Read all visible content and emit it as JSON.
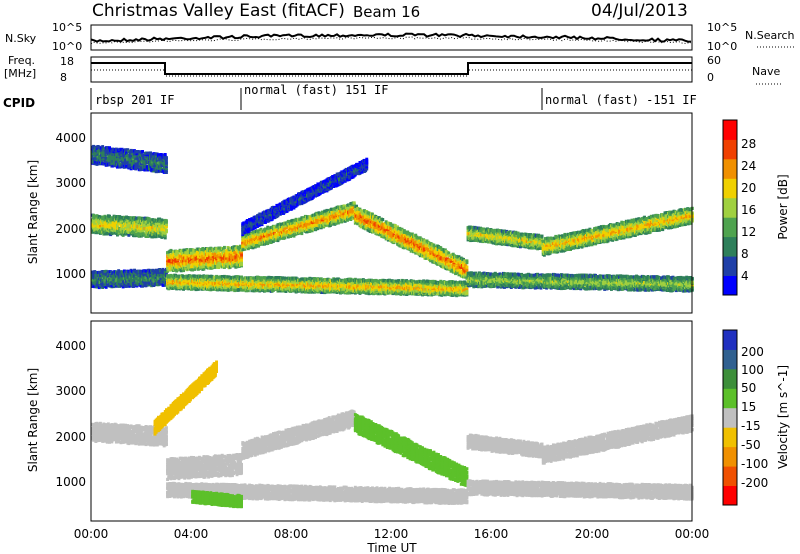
{
  "header": {
    "title": "Christmas Valley East (fitACF)",
    "beam_label": "Beam 16",
    "date": "04/Jul/2013"
  },
  "noise_panel": {
    "left_label": "N.Sky",
    "right_label": "N.Search",
    "left_ticks": [
      "10^5",
      "10^0"
    ],
    "right_ticks": [
      "10^5",
      "10^0"
    ]
  },
  "freq_panel": {
    "left_label_line1": "Freq.",
    "left_label_line2": "[MHz]",
    "left_ticks": [
      "18",
      "8"
    ],
    "right_ticks": [
      "60",
      "0"
    ],
    "right_label": "Nave",
    "cpid_label": "CPID",
    "cpid_segments": [
      "rbsp 201 IF",
      "normal (fast) 151 IF",
      "normal (fast) -151 IF"
    ]
  },
  "x_axis": {
    "label": "Time UT",
    "ticks": [
      "00:00",
      "04:00",
      "08:00",
      "12:00",
      "16:00",
      "20:00",
      "00:00"
    ]
  },
  "colors": {
    "power": [
      "#0000ff",
      "#1f3fa8",
      "#2e7f5a",
      "#4fa34f",
      "#a0d040",
      "#f0d000",
      "#f09000",
      "#f04000",
      "#ff0000"
    ],
    "velocity": [
      "#2030c0",
      "#306090",
      "#3d8f3a",
      "#5cc02a",
      "#c0c0c0",
      "#f0c000",
      "#f09000",
      "#f05000",
      "#ff0000"
    ]
  },
  "chart_data": [
    {
      "type": "heatmap",
      "name": "power",
      "ylabel": "Slant Range [km]",
      "xlabel": "",
      "yticks": [
        "1000",
        "2000",
        "3000",
        "4000"
      ],
      "ylim": [
        180,
        4500
      ],
      "xlim": [
        0,
        24
      ],
      "colorbar_label": "Power [dB]",
      "colorbar_ticks": [
        "4",
        "8",
        "12",
        "16",
        "20",
        "24",
        "28"
      ],
      "colorbar_range": [
        0,
        32
      ],
      "bands": [
        {
          "t": [
            0,
            3
          ],
          "center": [
            2100,
            2000
          ],
          "width": 400,
          "level": 20
        },
        {
          "t": [
            0,
            3
          ],
          "center": [
            900,
            950
          ],
          "width": 350,
          "level": 10
        },
        {
          "t": [
            3,
            6
          ],
          "center": [
            1300,
            1400
          ],
          "width": 450,
          "level": 26
        },
        {
          "t": [
            6,
            10.5
          ],
          "center": [
            1700,
            2400
          ],
          "width": 350,
          "level": 24
        },
        {
          "t": [
            10.5,
            15
          ],
          "center": [
            2300,
            1100
          ],
          "width": 400,
          "level": 26
        },
        {
          "t": [
            3,
            15
          ],
          "center": [
            850,
            700
          ],
          "width": 300,
          "level": 22
        },
        {
          "t": [
            15,
            18
          ],
          "center": [
            1900,
            1700
          ],
          "width": 300,
          "level": 20
        },
        {
          "t": [
            18,
            24
          ],
          "center": [
            1600,
            2300
          ],
          "width": 350,
          "level": 22
        },
        {
          "t": [
            15,
            24
          ],
          "center": [
            900,
            800
          ],
          "width": 300,
          "level": 16
        },
        {
          "t": [
            6,
            11
          ],
          "center": [
            2000,
            3400
          ],
          "width": 250,
          "level": 6
        },
        {
          "t": [
            0,
            3
          ],
          "center": [
            3600,
            3400
          ],
          "width": 400,
          "level": 9
        }
      ]
    },
    {
      "type": "heatmap",
      "name": "velocity",
      "ylabel": "Slant Range [km]",
      "xlabel": "Time UT",
      "yticks": [
        "1000",
        "2000",
        "3000",
        "4000"
      ],
      "ylim": [
        180,
        4500
      ],
      "xlim": [
        0,
        24
      ],
      "colorbar_label": "Velocity [m s^-1]",
      "colorbar_ticks": [
        "200",
        "100",
        "50",
        "15",
        "-15",
        "-50",
        "-100",
        "-200"
      ],
      "colorbar_range": [
        -250,
        250
      ],
      "bands": [
        {
          "t": [
            0,
            3
          ],
          "center": [
            2100,
            2000
          ],
          "width": 400,
          "level": 0
        },
        {
          "t": [
            3,
            6
          ],
          "center": [
            1300,
            1400
          ],
          "width": 450,
          "level": 0
        },
        {
          "t": [
            6,
            10.5
          ],
          "center": [
            1700,
            2400
          ],
          "width": 350,
          "level": 0
        },
        {
          "t": [
            10.5,
            15
          ],
          "center": [
            2300,
            1100
          ],
          "width": 400,
          "level": 60
        },
        {
          "t": [
            3,
            15
          ],
          "center": [
            850,
            700
          ],
          "width": 300,
          "level": 0
        },
        {
          "t": [
            15,
            18
          ],
          "center": [
            1900,
            1700
          ],
          "width": 300,
          "level": 0
        },
        {
          "t": [
            18,
            24
          ],
          "center": [
            1600,
            2300
          ],
          "width": 350,
          "level": 0
        },
        {
          "t": [
            15,
            24
          ],
          "center": [
            900,
            800
          ],
          "width": 300,
          "level": 0
        },
        {
          "t": [
            2.5,
            5
          ],
          "center": [
            2200,
            3500
          ],
          "width": 300,
          "level": -60
        },
        {
          "t": [
            4,
            6
          ],
          "center": [
            700,
            600
          ],
          "width": 250,
          "level": 60
        }
      ]
    }
  ]
}
